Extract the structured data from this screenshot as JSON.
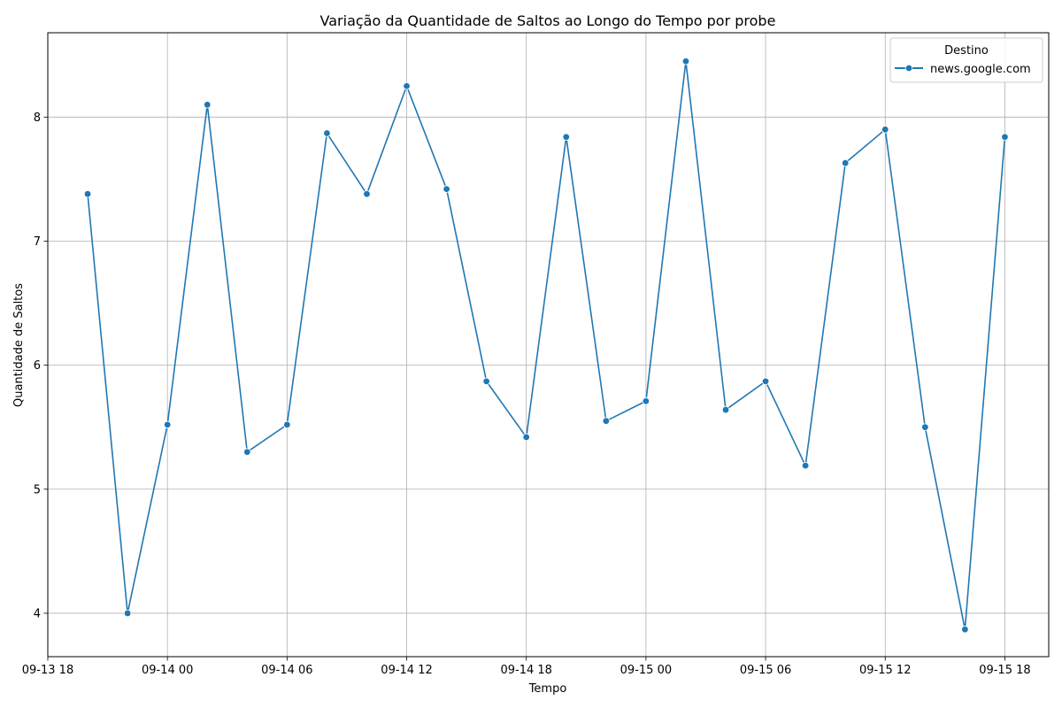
{
  "chart_data": {
    "type": "line",
    "title": "Variação da Quantidade de Saltos ao Longo do Tempo por probe",
    "xlabel": "Tempo",
    "ylabel": "Quantidade de Saltos",
    "grid": true,
    "legend": {
      "title": "Destino",
      "placement": "top-right"
    },
    "color": "#1f77b4",
    "xlim": [
      "2023-09-13 18:00",
      "2023-09-15 20:12"
    ],
    "ylim": [
      3.65,
      8.68
    ],
    "x_ticks": [
      "09-13 18",
      "09-14 00",
      "09-14 06",
      "09-14 12",
      "09-14 18",
      "09-15 00",
      "09-15 06",
      "09-15 12",
      "09-15 18"
    ],
    "y_ticks": [
      "4",
      "5",
      "6",
      "7",
      "8"
    ],
    "series": [
      {
        "name": "news.google.com",
        "x": [
          "2023-09-13 20:00",
          "2023-09-13 22:00",
          "2023-09-14 00:00",
          "2023-09-14 02:00",
          "2023-09-14 04:00",
          "2023-09-14 06:00",
          "2023-09-14 08:00",
          "2023-09-14 10:00",
          "2023-09-14 12:00",
          "2023-09-14 14:00",
          "2023-09-14 16:00",
          "2023-09-14 18:00",
          "2023-09-14 20:00",
          "2023-09-14 22:00",
          "2023-09-15 00:00",
          "2023-09-15 02:00",
          "2023-09-15 04:00",
          "2023-09-15 06:00",
          "2023-09-15 08:00",
          "2023-09-15 10:00",
          "2023-09-15 12:00",
          "2023-09-15 14:00",
          "2023-09-15 16:00",
          "2023-09-15 18:00"
        ],
        "values": [
          7.38,
          4.0,
          5.52,
          8.1,
          5.3,
          5.52,
          7.87,
          7.38,
          8.25,
          7.42,
          5.87,
          5.42,
          7.84,
          5.55,
          5.71,
          8.45,
          5.64,
          5.87,
          5.19,
          7.63,
          7.9,
          5.5,
          3.87,
          7.84
        ]
      }
    ]
  }
}
